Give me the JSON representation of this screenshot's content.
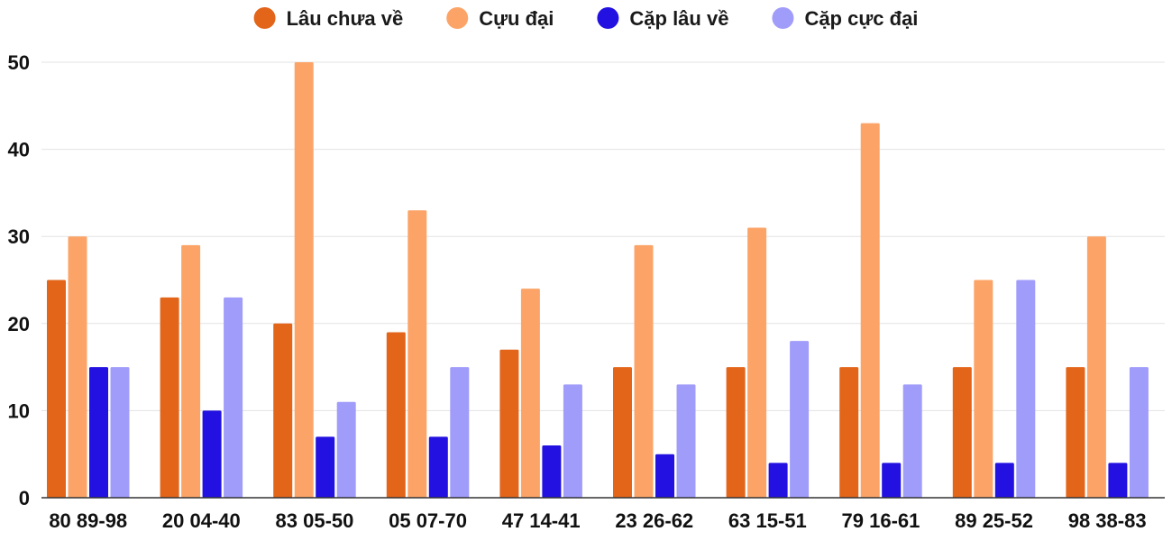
{
  "chart_data": {
    "type": "bar",
    "title": "",
    "xlabel": "",
    "ylabel": "",
    "ylim": [
      0,
      50
    ],
    "yticks": [
      0,
      10,
      20,
      30,
      40,
      50
    ],
    "grid": true,
    "legend_position": "top",
    "categories": [
      "80 89-98",
      "20 04-40",
      "83 05-50",
      "05 07-70",
      "47 14-41",
      "23 26-62",
      "63 15-51",
      "79 16-61",
      "89 25-52",
      "98 38-83"
    ],
    "series": [
      {
        "name": "Lâu chưa về",
        "color": "#e2651a",
        "values": [
          25,
          23,
          20,
          19,
          17,
          15,
          15,
          15,
          15,
          15
        ]
      },
      {
        "name": "Cựu đại",
        "color": "#fca468",
        "values": [
          30,
          29,
          50,
          33,
          24,
          29,
          31,
          43,
          25,
          30
        ]
      },
      {
        "name": "Cặp lâu về",
        "color": "#2211e0",
        "values": [
          15,
          10,
          7,
          7,
          6,
          5,
          4,
          4,
          4,
          4
        ]
      },
      {
        "name": "Cặp cực đại",
        "color": "#a09cfa",
        "values": [
          15,
          23,
          11,
          15,
          13,
          13,
          18,
          13,
          25,
          15
        ]
      }
    ]
  }
}
